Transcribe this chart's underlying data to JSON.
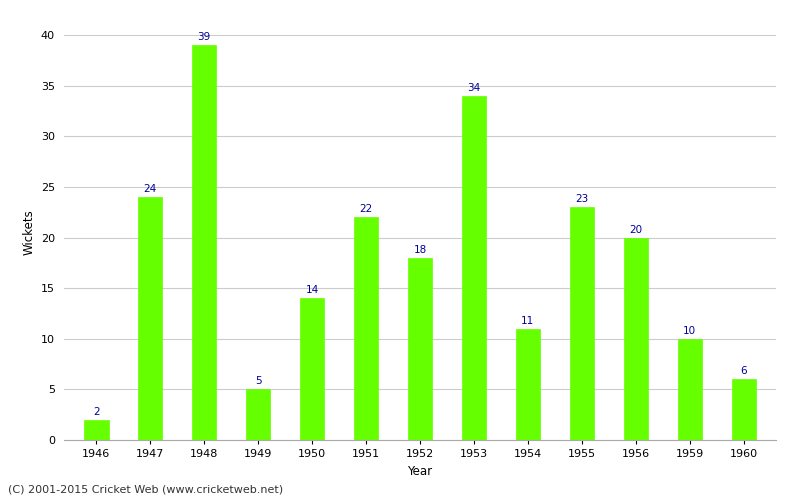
{
  "years": [
    "1946",
    "1947",
    "1948",
    "1949",
    "1950",
    "1951",
    "1952",
    "1953",
    "1954",
    "1955",
    "1956",
    "1959",
    "1960"
  ],
  "wickets": [
    2,
    24,
    39,
    5,
    14,
    22,
    18,
    34,
    11,
    23,
    20,
    10,
    6
  ],
  "bar_color": "#66ff00",
  "bar_edge_color": "#66ff00",
  "label_color": "#000099",
  "xlabel": "Year",
  "ylabel": "Wickets",
  "ylim": [
    0,
    41
  ],
  "yticks": [
    0,
    5,
    10,
    15,
    20,
    25,
    30,
    35,
    40
  ],
  "grid_color": "#cccccc",
  "bg_color": "#ffffff",
  "footer": "(C) 2001-2015 Cricket Web (www.cricketweb.net)",
  "bar_width": 0.45,
  "label_fontsize": 7.5,
  "axis_label_fontsize": 8.5,
  "tick_fontsize": 8,
  "footer_fontsize": 8
}
